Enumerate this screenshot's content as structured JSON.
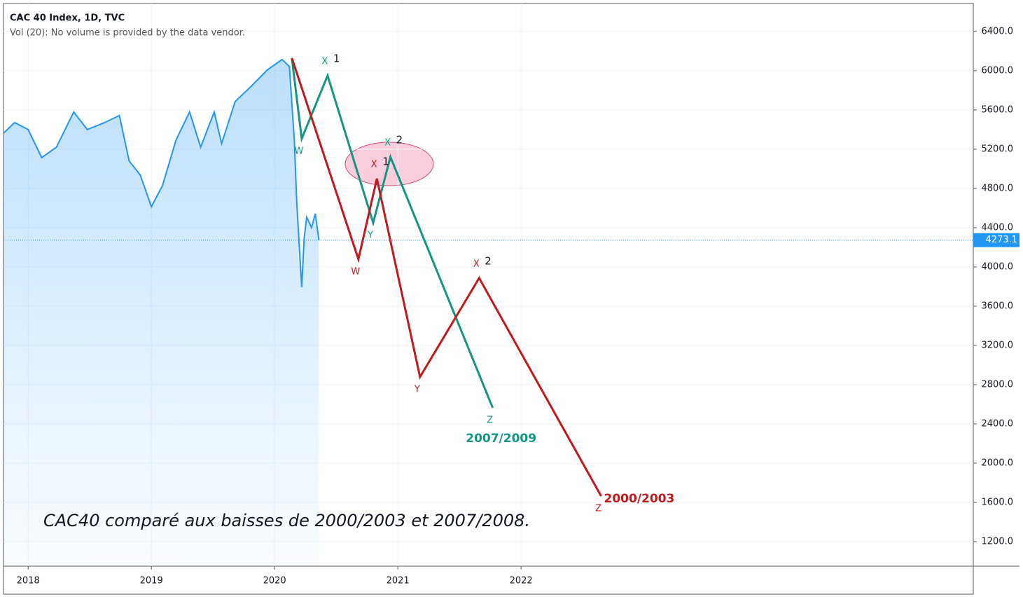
{
  "chart_data": {
    "type": "line",
    "title": "CAC 40 Index, 1D, TVC",
    "subtitle": "Vol (20): No volume is provided by the data vendor.",
    "annotation": "CAC40 comparé aux baisses de 2000/2003 et 2007/2008.",
    "xlim": [
      2017.8,
      2025.67
    ],
    "xticks": [
      2018,
      2019,
      2020,
      2021,
      2022
    ],
    "ylim": [
      950,
      6685
    ],
    "yticks": [
      {
        "value": 1200,
        "label": "1200.0"
      },
      {
        "value": 1600,
        "label": "1600.0"
      },
      {
        "value": 2000,
        "label": "2000.0"
      },
      {
        "value": 2400,
        "label": "2400.0"
      },
      {
        "value": 2800,
        "label": "2800.0"
      },
      {
        "value": 3200,
        "label": "3200.0"
      },
      {
        "value": 3600,
        "label": "3600.0"
      },
      {
        "value": 4000,
        "label": "4000.0"
      },
      {
        "value": 4400,
        "label": "4400.0"
      },
      {
        "value": 4800,
        "label": "4800.0"
      },
      {
        "value": 5200,
        "label": "5200.0"
      },
      {
        "value": 5600,
        "label": "5600.0"
      },
      {
        "value": 6000,
        "label": "6000.0"
      },
      {
        "value": 6400,
        "label": "6400.0"
      }
    ],
    "grid": true,
    "last_value": 4273.1,
    "series": [
      {
        "color": "#2196f3",
        "area": true,
        "x": [
          2017.8,
          2017.89,
          2018.0,
          2018.11,
          2018.23,
          2018.37,
          2018.48,
          2018.62,
          2018.74,
          2018.82,
          2018.91,
          2019.0,
          2019.09,
          2019.2,
          2019.31,
          2019.4,
          2019.51,
          2019.57,
          2019.68,
          2019.8,
          2019.94,
          2020.06,
          2020.12,
          2020.16,
          2020.18,
          2020.22,
          2020.24,
          2020.26,
          2020.3,
          2020.33,
          2020.36
        ],
        "values": [
          5364,
          5471,
          5400,
          5114,
          5221,
          5579,
          5400,
          5471,
          5543,
          5079,
          4936,
          4614,
          4829,
          5293,
          5579,
          5221,
          5579,
          5257,
          5686,
          5829,
          6007,
          6114,
          6043,
          5293,
          4650,
          3793,
          4293,
          4507,
          4400,
          4543,
          4271
        ]
      },
      {
        "name": "2007/2009",
        "color": "#159484",
        "x": [
          2020.14,
          2020.22,
          2020.43,
          2020.8,
          2020.94,
          2021.77
        ],
        "values": [
          6129,
          5307,
          5950,
          4450,
          5121,
          2564
        ],
        "point_labels": [
          null,
          "W",
          "X",
          "Y",
          "X",
          "Z"
        ],
        "point_numbers": [
          null,
          null,
          "1",
          null,
          "2",
          null
        ]
      },
      {
        "name": "2000/2003",
        "color": "#c0181b",
        "x": [
          2020.14,
          2020.68,
          2020.83,
          2021.18,
          2021.66,
          2022.65
        ],
        "values": [
          6129,
          4079,
          4900,
          2879,
          3886,
          1664
        ],
        "point_labels": [
          null,
          "W",
          "X",
          "Y",
          "X",
          "Z"
        ],
        "point_numbers": [
          null,
          null,
          "1",
          null,
          "2",
          null
        ]
      }
    ]
  }
}
